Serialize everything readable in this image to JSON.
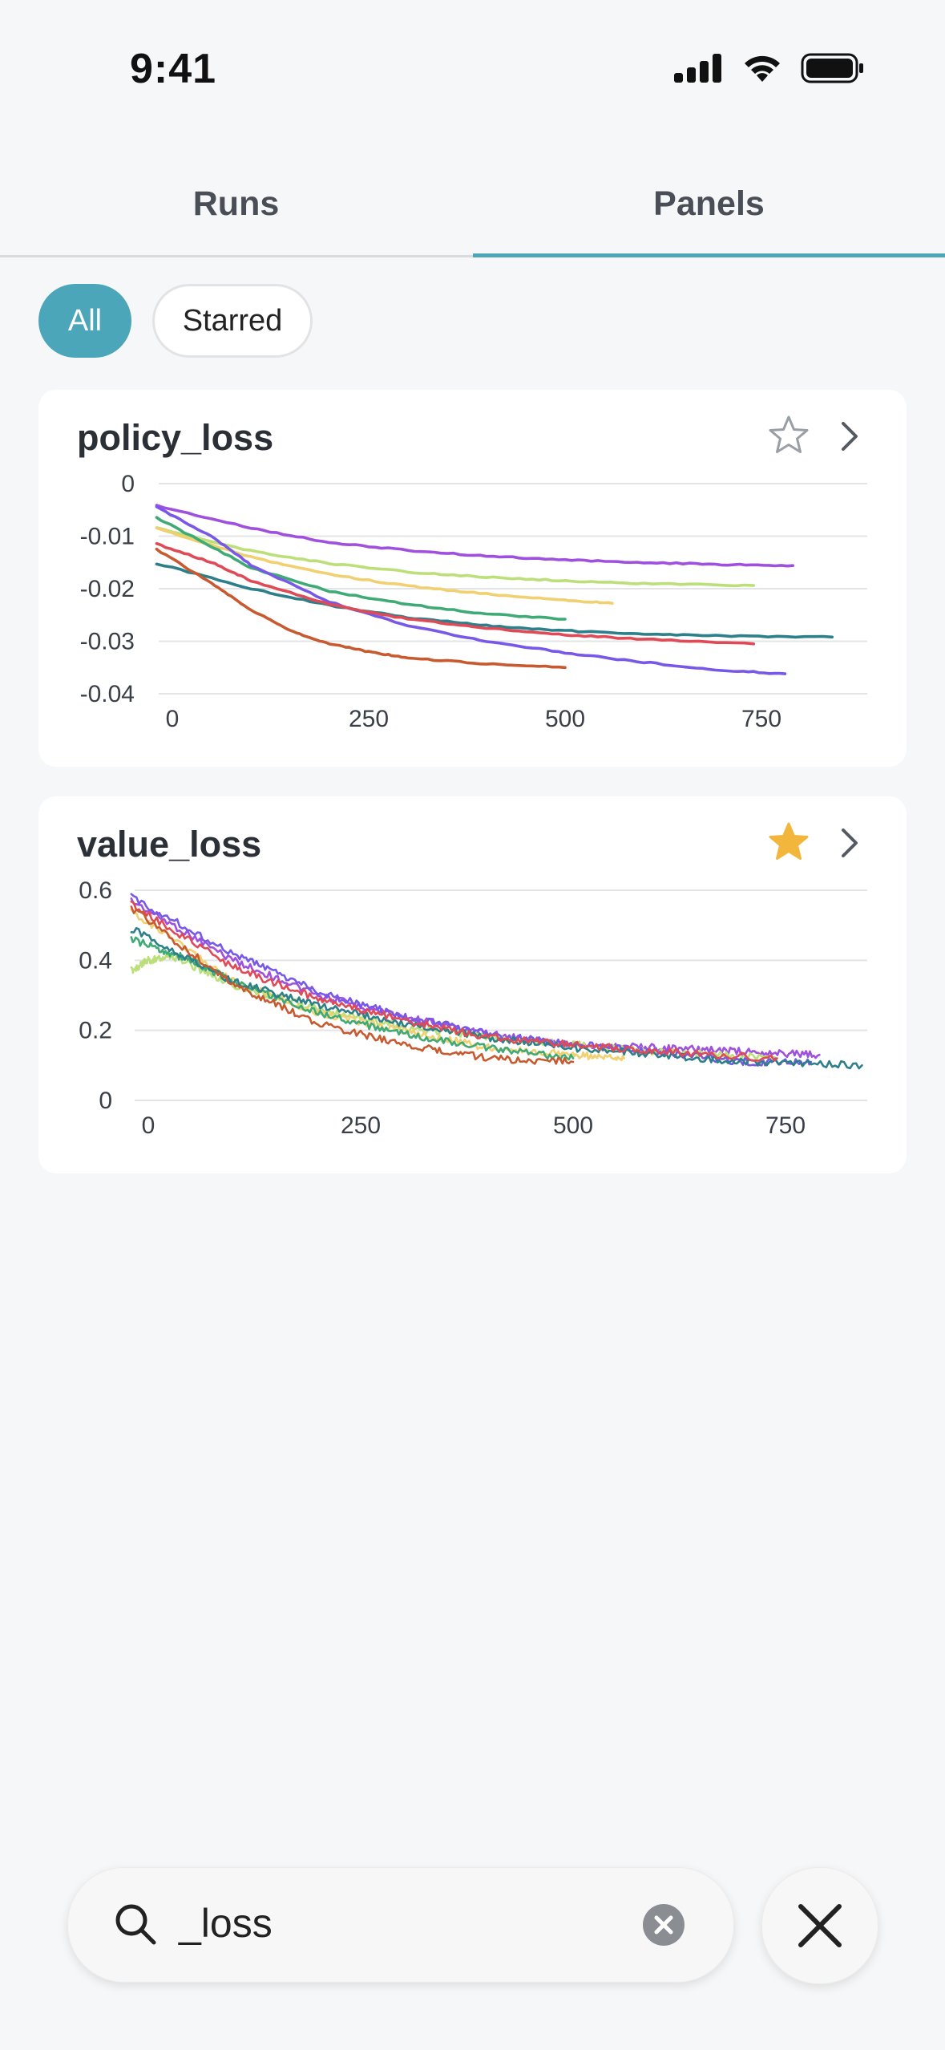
{
  "status_bar": {
    "time": "9:41",
    "icons": [
      "signal-icon",
      "wifi-icon",
      "battery-icon"
    ]
  },
  "tabs": [
    {
      "label": "Runs",
      "active": false
    },
    {
      "label": "Panels",
      "active": true
    }
  ],
  "filters": [
    {
      "label": "All",
      "selected": true
    },
    {
      "label": "Starred",
      "selected": false
    }
  ],
  "colors": {
    "accent": "#4aa6b8",
    "star_on": "#f2b63c",
    "star_off": "#9a9ea5"
  },
  "panels": [
    {
      "title": "policy_loss",
      "starred": false,
      "chart_data": {
        "type": "line",
        "title": "policy_loss",
        "xlim": [
          -50,
          840
        ],
        "ylim": [
          -0.04,
          0
        ],
        "x_ticks": [
          0,
          250,
          500,
          750
        ],
        "y_ticks": [
          0,
          -0.01,
          -0.02,
          -0.03,
          -0.04
        ],
        "x_tick_labels": [
          "0",
          "250",
          "500",
          "750"
        ],
        "y_tick_labels": [
          "0",
          "-0.01",
          "-0.02",
          "-0.03",
          "-0.04"
        ],
        "grid": true,
        "series": [
          {
            "color": "#a050de",
            "x": [
              -20,
              100,
              200,
              300,
              400,
              500,
              600,
              700,
              790
            ],
            "y": [
              -0.0042,
              -0.0085,
              -0.0112,
              -0.0127,
              -0.0138,
              -0.0145,
              -0.015,
              -0.0154,
              -0.0156
            ]
          },
          {
            "color": "#bcdf7a",
            "x": [
              -20,
              100,
              200,
              300,
              400,
              500,
              600,
              740
            ],
            "y": [
              -0.0085,
              -0.0128,
              -0.0152,
              -0.0168,
              -0.0178,
              -0.0185,
              -0.019,
              -0.0194
            ]
          },
          {
            "color": "#f0d070",
            "x": [
              -20,
              100,
              200,
              300,
              400,
              500,
              560
            ],
            "y": [
              -0.0085,
              -0.014,
              -0.0173,
              -0.0195,
              -0.021,
              -0.0222,
              -0.0228
            ]
          },
          {
            "color": "#3faa76",
            "x": [
              -20,
              50,
              100,
              200,
              300,
              400,
              500
            ],
            "y": [
              -0.0065,
              -0.012,
              -0.016,
              -0.0205,
              -0.023,
              -0.0248,
              -0.0258
            ]
          },
          {
            "color": "#7858e6",
            "x": [
              -20,
              50,
              100,
              200,
              300,
              400,
              500,
              600,
              700,
              780
            ],
            "y": [
              -0.0045,
              -0.01,
              -0.0155,
              -0.0225,
              -0.027,
              -0.03,
              -0.0322,
              -0.034,
              -0.0355,
              -0.0362
            ]
          },
          {
            "color": "#2d7f89",
            "x": [
              -20,
              100,
              200,
              300,
              400,
              500,
              600,
              700,
              840
            ],
            "y": [
              -0.0152,
              -0.02,
              -0.0232,
              -0.0255,
              -0.027,
              -0.028,
              -0.0286,
              -0.029,
              -0.0292
            ]
          },
          {
            "color": "#e04a57",
            "x": [
              -20,
              50,
              100,
              200,
              300,
              400,
              500,
              600,
              740
            ],
            "y": [
              -0.0115,
              -0.015,
              -0.0185,
              -0.023,
              -0.0258,
              -0.0275,
              -0.0288,
              -0.0296,
              -0.0305
            ]
          },
          {
            "color": "#c85a30",
            "x": [
              -20,
              50,
              100,
              150,
              200,
              250,
              300,
              400,
              500
            ],
            "y": [
              -0.0125,
              -0.019,
              -0.024,
              -0.028,
              -0.0305,
              -0.032,
              -0.0332,
              -0.0343,
              -0.035
            ]
          }
        ]
      }
    },
    {
      "title": "value_loss",
      "starred": true,
      "chart_data": {
        "type": "line",
        "title": "value_loss",
        "xlim": [
          -20,
          840
        ],
        "ylim": [
          0,
          0.6
        ],
        "x_ticks": [
          0,
          250,
          500,
          750
        ],
        "y_ticks": [
          0,
          0.2,
          0.4,
          0.6
        ],
        "x_tick_labels": [
          "0",
          "250",
          "500",
          "750"
        ],
        "y_tick_labels": [
          "0",
          "0.2",
          "0.4",
          "0.6"
        ],
        "grid": true,
        "series": [
          {
            "color": "#a050de",
            "x": [
              -20,
              100,
              200,
              300,
              400,
              500,
              600,
              700,
              790
            ],
            "y": [
              0.57,
              0.4,
              0.3,
              0.24,
              0.19,
              0.16,
              0.15,
              0.14,
              0.13
            ]
          },
          {
            "color": "#bcdf7a",
            "x": [
              -20,
              0,
              30,
              100,
              200,
              300,
              400,
              500,
              600,
              740
            ],
            "y": [
              0.37,
              0.4,
              0.41,
              0.33,
              0.26,
              0.21,
              0.18,
              0.16,
              0.14,
              0.12
            ]
          },
          {
            "color": "#f0d070",
            "x": [
              -20,
              100,
              200,
              300,
              400,
              500,
              560
            ],
            "y": [
              0.54,
              0.34,
              0.25,
              0.2,
              0.15,
              0.13,
              0.12
            ]
          },
          {
            "color": "#3faa76",
            "x": [
              -20,
              50,
              100,
              200,
              300,
              400,
              500
            ],
            "y": [
              0.46,
              0.4,
              0.34,
              0.25,
              0.19,
              0.15,
              0.12
            ]
          },
          {
            "color": "#7858e6",
            "x": [
              -20,
              100,
              200,
              300,
              400,
              500,
              600,
              700,
              780
            ],
            "y": [
              0.58,
              0.42,
              0.31,
              0.24,
              0.19,
              0.16,
              0.14,
              0.11,
              0.11
            ]
          },
          {
            "color": "#2d7f89",
            "x": [
              -20,
              100,
              200,
              300,
              400,
              500,
              600,
              700,
              840
            ],
            "y": [
              0.49,
              0.34,
              0.27,
              0.22,
              0.18,
              0.15,
              0.13,
              0.11,
              0.1
            ]
          },
          {
            "color": "#e04a57",
            "x": [
              -20,
              100,
              200,
              300,
              400,
              500,
              600,
              740
            ],
            "y": [
              0.56,
              0.38,
              0.29,
              0.23,
              0.18,
              0.16,
              0.14,
              0.12
            ]
          },
          {
            "color": "#c85a30",
            "x": [
              -20,
              100,
              200,
              300,
              400,
              500
            ],
            "y": [
              0.55,
              0.33,
              0.22,
              0.16,
              0.12,
              0.11
            ]
          }
        ]
      }
    }
  ],
  "search": {
    "value": "_loss"
  }
}
